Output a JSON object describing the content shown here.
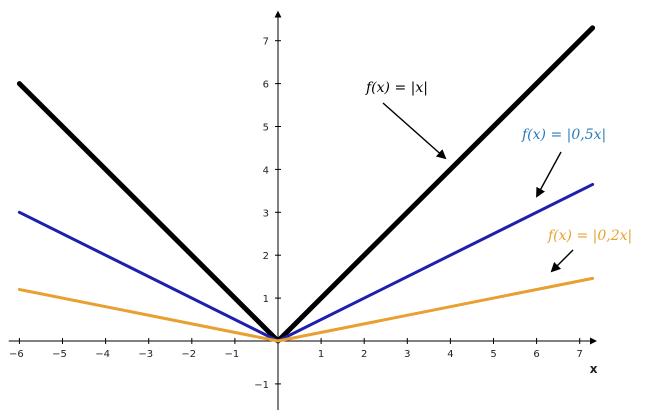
{
  "chart_data": {
    "type": "line",
    "title": "",
    "xlabel": "x",
    "ylabel": "",
    "xlim": [
      -6.2,
      7.3
    ],
    "ylim": [
      -1.6,
      7.6
    ],
    "grid": false,
    "x_ticks": [
      -6,
      -5,
      -4,
      -3,
      -2,
      -1,
      1,
      2,
      3,
      4,
      5,
      6,
      7
    ],
    "y_ticks": [
      -1,
      1,
      2,
      3,
      4,
      5,
      6,
      7
    ],
    "series": [
      {
        "name": "f(x) = |x|",
        "color": "#000000",
        "x": [
          -6,
          0,
          7.3
        ],
        "y": [
          6,
          0,
          7.3
        ]
      },
      {
        "name": "f(x) = |0,5x|",
        "color": "#1f1fae",
        "x": [
          -6,
          0,
          7.3
        ],
        "y": [
          3,
          0,
          3.65
        ]
      },
      {
        "name": "f(x) = |0,2x|",
        "color": "#e8a030",
        "x": [
          -6,
          0,
          7.3
        ],
        "y": [
          1.2,
          0,
          1.46
        ]
      }
    ],
    "annotations": [
      {
        "text": "f(x) = |x|",
        "color": "#000000",
        "series": 0
      },
      {
        "text": "f(x) = |0,5x|",
        "color": "#2a7ab8",
        "series": 1
      },
      {
        "text": "f(x) = |0,2x|",
        "color": "#e8a030",
        "series": 2
      }
    ]
  }
}
